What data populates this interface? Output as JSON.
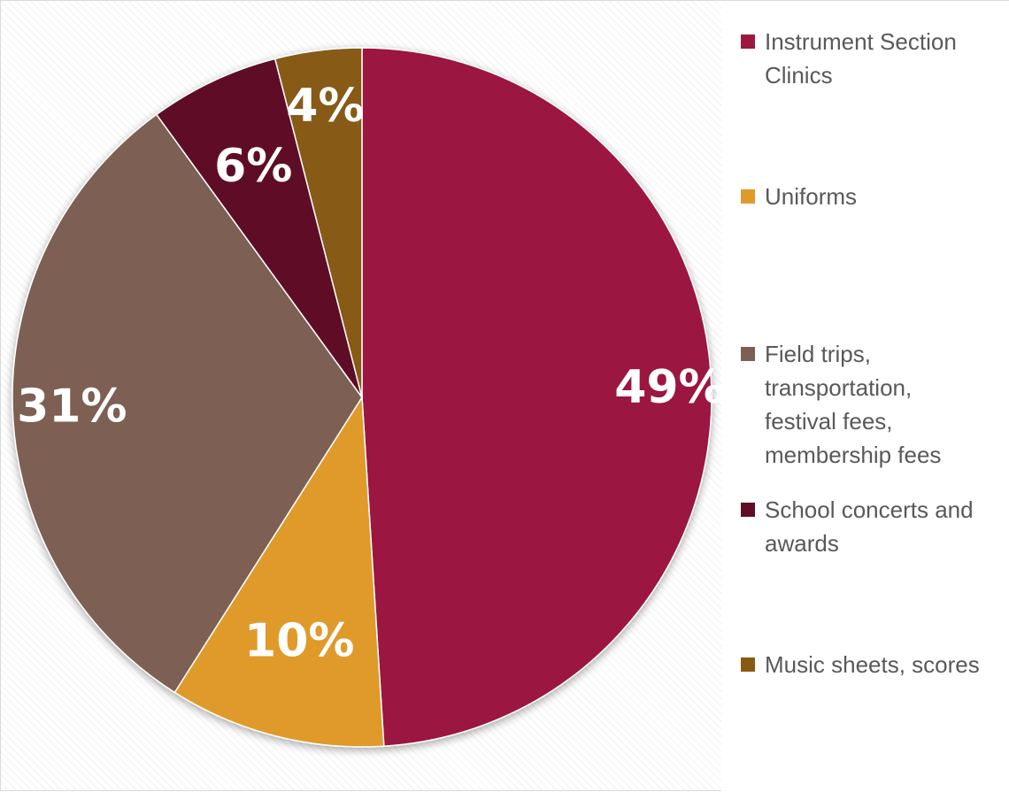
{
  "chart_data": {
    "type": "pie",
    "categories": [
      "Instrument Section Clinics",
      "Uniforms",
      "Field trips, transportation, festival fees, membership fees",
      "School concerts and awards",
      "Music sheets, scores"
    ],
    "values": [
      49,
      10,
      31,
      6,
      4
    ],
    "data_labels": [
      "49%",
      "10%",
      "31%",
      "6%",
      "4%"
    ],
    "colors": [
      "#9b1940",
      "#e09a2a",
      "#7d5f53",
      "#5e0f27",
      "#875a13"
    ],
    "title": "",
    "legend_position": "right"
  }
}
